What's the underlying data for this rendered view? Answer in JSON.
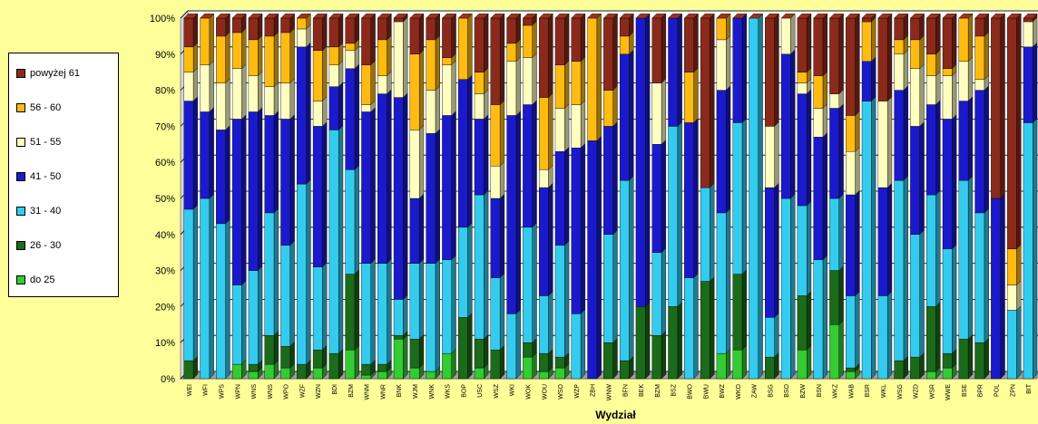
{
  "chart_data": {
    "type": "bar",
    "stacked": "percent",
    "xlabel": "Wydział",
    "ylim": [
      0,
      100
    ],
    "yticks": [
      "0%",
      "10%",
      "20%",
      "30%",
      "40%",
      "50%",
      "60%",
      "70%",
      "80%",
      "90%",
      "100%"
    ],
    "legend_position": "left",
    "grid": true,
    "categories": [
      "WEI",
      "WFI",
      "WPS",
      "WPN",
      "WNS",
      "WNS",
      "WPO",
      "WZF",
      "WZN",
      "BDI",
      "BZM",
      "WNM",
      "WNR",
      "BNK",
      "WJM",
      "WNK",
      "WKS",
      "BOP",
      "USC",
      "WSZ",
      "WKI",
      "WOK",
      "WOU",
      "WSO",
      "WZP",
      "ZBH",
      "WNW",
      "BFN",
      "BEK",
      "BZM",
      "BSZ",
      "BWO",
      "BWU",
      "BWZ",
      "WKO",
      "ZAW",
      "BSG",
      "BSO",
      "BZW",
      "BSN",
      "WKZ",
      "WAB",
      "BSR",
      "WKL",
      "WSG",
      "WZD",
      "WSR",
      "WWE",
      "BSE",
      "BPR",
      "POL",
      "ZPN",
      "BIT"
    ],
    "colors": [
      "#33cc33",
      "#1a6b1a",
      "#33ccee",
      "#1a1acc",
      "#ffffc0",
      "#ffbb11",
      "#8b2a1a"
    ],
    "series": [
      {
        "name": "do 25",
        "values": [
          0,
          0,
          0,
          4,
          2,
          4,
          3,
          0,
          3,
          0,
          8,
          1,
          2,
          11,
          3,
          2,
          7,
          0,
          3,
          0,
          0,
          6,
          2,
          3,
          0,
          0,
          0,
          0,
          0,
          0,
          0,
          0,
          0,
          7,
          8,
          0,
          0,
          0,
          8,
          0,
          15,
          2,
          0,
          0,
          0,
          0,
          2,
          3,
          0,
          0,
          0,
          0,
          0
        ]
      },
      {
        "name": "26 - 30",
        "values": [
          5,
          0,
          0,
          0,
          2,
          8,
          6,
          4,
          5,
          7,
          21,
          3,
          2,
          1,
          8,
          0,
          0,
          17,
          8,
          8,
          0,
          4,
          5,
          3,
          0,
          0,
          10,
          5,
          20,
          12,
          20,
          0,
          27,
          0,
          21,
          0,
          6,
          0,
          15,
          0,
          15,
          1,
          0,
          0,
          5,
          6,
          18,
          4,
          11,
          10,
          0,
          0,
          0
        ]
      },
      {
        "name": "31 - 40",
        "values": [
          42,
          50,
          43,
          22,
          26,
          34,
          28,
          50,
          23,
          62,
          29,
          28,
          28,
          10,
          21,
          30,
          26,
          25,
          40,
          20,
          18,
          32,
          16,
          31,
          18,
          0,
          30,
          50,
          0,
          23,
          50,
          28,
          26,
          39,
          42,
          100,
          11,
          50,
          25,
          33,
          20,
          20,
          77,
          23,
          50,
          34,
          31,
          29,
          44,
          36,
          0,
          19,
          71
        ]
      },
      {
        "name": "41 - 50",
        "values": [
          30,
          24,
          26,
          46,
          44,
          27,
          35,
          38,
          39,
          12,
          28,
          42,
          47,
          56,
          18,
          36,
          40,
          41,
          21,
          22,
          55,
          34,
          30,
          26,
          46,
          66,
          30,
          35,
          80,
          30,
          30,
          43,
          0,
          34,
          29,
          0,
          36,
          40,
          31,
          34,
          25,
          28,
          11,
          30,
          25,
          30,
          25,
          36,
          22,
          34,
          50,
          0,
          21
        ]
      },
      {
        "name": "51 - 55",
        "values": [
          8,
          13,
          13,
          14,
          10,
          8,
          10,
          5,
          7,
          6,
          5,
          2,
          5,
          21,
          19,
          12,
          14,
          0,
          7,
          9,
          15,
          13,
          5,
          12,
          12,
          0,
          0,
          0,
          0,
          17,
          0,
          0,
          0,
          14,
          0,
          0,
          17,
          10,
          3,
          8,
          4,
          12,
          0,
          24,
          10,
          16,
          8,
          12,
          11,
          3,
          0,
          7,
          7
        ]
      },
      {
        "name": "56 - 60",
        "values": [
          7,
          13,
          13,
          10,
          10,
          14,
          14,
          3,
          14,
          5,
          2,
          11,
          10,
          0,
          21,
          14,
          2,
          17,
          6,
          17,
          5,
          9,
          20,
          12,
          12,
          34,
          10,
          5,
          0,
          0,
          0,
          14,
          0,
          6,
          0,
          0,
          0,
          0,
          3,
          9,
          0,
          10,
          11,
          0,
          4,
          8,
          6,
          2,
          12,
          12,
          0,
          10,
          0
        ]
      },
      {
        "name": "powyżej 61",
        "values": [
          8,
          0,
          5,
          4,
          6,
          5,
          4,
          0,
          9,
          8,
          7,
          13,
          6,
          1,
          10,
          6,
          11,
          0,
          15,
          24,
          7,
          2,
          22,
          13,
          12,
          0,
          20,
          5,
          0,
          18,
          0,
          15,
          47,
          0,
          0,
          0,
          30,
          0,
          15,
          16,
          21,
          27,
          1,
          23,
          6,
          6,
          10,
          14,
          0,
          5,
          50,
          64,
          1
        ]
      }
    ]
  }
}
